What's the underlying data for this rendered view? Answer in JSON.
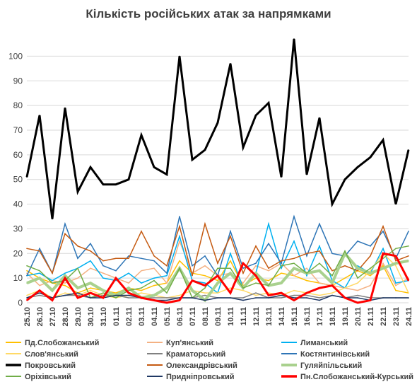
{
  "chart_data": {
    "type": "line",
    "title": "Кількість російських атак за напрямками",
    "xlabel": "",
    "ylabel": "",
    "ylim": [
      0,
      107
    ],
    "yticks": [
      0,
      10,
      20,
      30,
      40,
      50,
      60,
      70,
      80,
      90,
      100
    ],
    "grid": "horizontal",
    "legend_position": "bottom",
    "x": [
      "25.10",
      "26.10",
      "27.10",
      "28.10",
      "29.10",
      "30.10",
      "31.10",
      "01.11",
      "02.11",
      "03.11",
      "04.11",
      "05.11",
      "06.11",
      "07.11",
      "08.11",
      "09.11",
      "10.11",
      "11.11",
      "12.11",
      "13.11",
      "14.11",
      "15.11",
      "16.11",
      "17.11",
      "18.11",
      "19.11",
      "20.11",
      "21.11",
      "22.11",
      "23.11",
      "24.11"
    ],
    "x_tick_labels": [
      "25.10",
      "26.10",
      "27.10",
      "28.10",
      "29.10",
      "30.10",
      "31.10",
      "01.11",
      "02.11",
      "03.11",
      "04.11",
      "05.11",
      "06.11",
      "07.11",
      "08.11",
      "09.11",
      "10.11",
      "11.11",
      "12.11",
      "13.11",
      "14.11",
      "15.11",
      "16.11",
      "17.11",
      "18.11",
      "19.11",
      "20.11",
      "21.11",
      "22.11",
      "23.11",
      "24.11"
    ],
    "series": [
      {
        "name": "Пд.Слобожанський",
        "color": "#ffc000",
        "width": 1.5,
        "values": [
          13,
          10,
          8,
          7,
          4,
          6,
          5,
          4,
          6,
          5,
          7,
          8,
          17,
          12,
          11,
          9,
          17,
          7,
          10,
          9,
          12,
          11,
          9,
          8,
          7,
          10,
          13,
          11,
          15,
          5,
          4
        ]
      },
      {
        "name": "Куп'янський",
        "color": "#f4b183",
        "width": 1.5,
        "values": [
          12,
          7,
          9,
          8,
          10,
          14,
          12,
          10,
          8,
          13,
          14,
          8,
          25,
          12,
          15,
          11,
          12,
          8,
          15,
          13,
          16,
          11,
          14,
          8,
          7,
          6,
          5,
          7,
          16,
          7,
          10
        ]
      },
      {
        "name": "Лиманський",
        "color": "#00b0f0",
        "width": 1.5,
        "values": [
          11,
          12,
          9,
          12,
          14,
          17,
          10,
          9,
          12,
          8,
          10,
          11,
          27,
          9,
          8,
          4,
          20,
          6,
          12,
          32,
          14,
          25,
          11,
          23,
          9,
          6,
          15,
          12,
          22,
          8,
          9
        ]
      },
      {
        "name": "Слов'янський",
        "color": "#ffd966",
        "width": 1.5,
        "values": [
          3,
          5,
          2,
          4,
          3,
          5,
          3,
          2,
          3,
          4,
          3,
          2,
          3,
          5,
          4,
          4,
          6,
          5,
          3,
          4,
          3,
          5,
          4,
          3,
          4,
          6,
          8,
          13,
          20,
          15,
          4
        ]
      },
      {
        "name": "Краматорський",
        "color": "#808080",
        "width": 1.5,
        "values": [
          2,
          3,
          2,
          3,
          3,
          2,
          3,
          3,
          2,
          2,
          2,
          2,
          2,
          2,
          3,
          2,
          2,
          2,
          4,
          2,
          2,
          3,
          3,
          2,
          3,
          2,
          3,
          2,
          2,
          2,
          2
        ]
      },
      {
        "name": "Костянтинівський",
        "color": "#2e75b6",
        "width": 1.5,
        "values": [
          11,
          22,
          12,
          32,
          18,
          24,
          15,
          13,
          19,
          18,
          17,
          12,
          35,
          15,
          19,
          11,
          29,
          14,
          16,
          24,
          16,
          35,
          19,
          32,
          20,
          19,
          25,
          23,
          29,
          18,
          29
        ]
      },
      {
        "name": "Покровський",
        "color": "#000000",
        "width": 3,
        "values": [
          51,
          76,
          34,
          79,
          45,
          55,
          48,
          48,
          50,
          68,
          55,
          52,
          100,
          58,
          62,
          73,
          97,
          63,
          76,
          81,
          51,
          107,
          52,
          75,
          40,
          50,
          55,
          59,
          66,
          40,
          62
        ]
      },
      {
        "name": "Олександрівський",
        "color": "#c55a11",
        "width": 1.5,
        "values": [
          22,
          21,
          12,
          28,
          23,
          21,
          17,
          18,
          18,
          29,
          19,
          15,
          31,
          11,
          32,
          16,
          27,
          12,
          23,
          14,
          17,
          18,
          20,
          21,
          13,
          15,
          13,
          19,
          31,
          17,
          19
        ]
      },
      {
        "name": "Гуляйпільський",
        "color": "#a9d18e",
        "width": 4,
        "values": [
          8,
          10,
          5,
          11,
          6,
          8,
          5,
          3,
          6,
          2,
          3,
          6,
          14,
          5,
          1,
          8,
          12,
          6,
          12,
          7,
          8,
          14,
          12,
          13,
          8,
          20,
          14,
          12,
          14,
          16,
          17
        ]
      },
      {
        "name": "Оріхівський",
        "color": "#70ad47",
        "width": 1.5,
        "values": [
          15,
          13,
          8,
          9,
          14,
          2,
          4,
          2,
          5,
          6,
          9,
          4,
          14,
          2,
          6,
          14,
          14,
          6,
          8,
          7,
          15,
          16,
          12,
          16,
          11,
          21,
          10,
          14,
          18,
          22,
          23
        ]
      },
      {
        "name": "Придніпровський",
        "color": "#1f3864",
        "width": 1.5,
        "values": [
          2,
          4,
          2,
          3,
          4,
          2,
          2,
          3,
          3,
          2,
          1,
          1,
          2,
          2,
          1,
          2,
          2,
          1,
          2,
          2,
          3,
          2,
          2,
          1,
          3,
          2,
          2,
          1,
          2,
          2,
          2
        ]
      },
      {
        "name": "Пн.Слобожанський-Курський",
        "color": "#ff0000",
        "width": 3,
        "values": [
          1,
          5,
          1,
          10,
          2,
          4,
          2,
          10,
          4,
          2,
          1,
          0,
          1,
          9,
          7,
          11,
          4,
          16,
          11,
          3,
          4,
          1,
          4,
          6,
          7,
          2,
          0,
          1,
          20,
          19,
          9
        ]
      }
    ]
  }
}
